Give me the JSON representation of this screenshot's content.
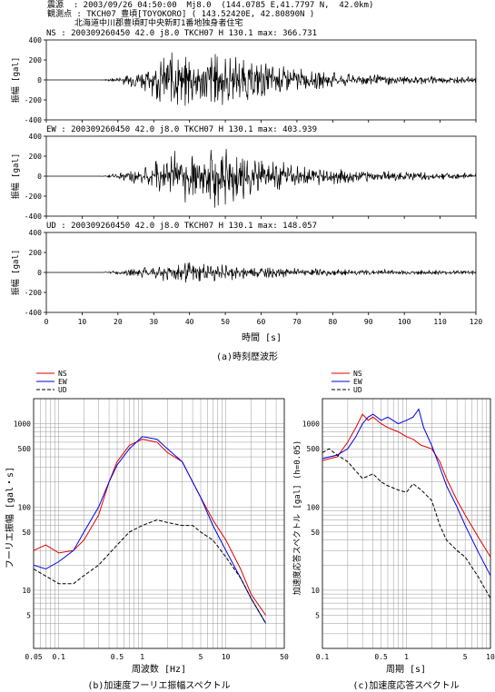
{
  "header": {
    "line1": "震源  : 2003/09/26 04:50:00  Mj8.0  (144.0785 E,41.7797 N,  42.0km)",
    "line2": "観測点 : TKCH07 豊頃[TOYOKORO] ( 143.52420E, 42.80890N )",
    "line3": "北海道中川郡豊頃町中央新町1番地独身者住宅"
  },
  "captions": {
    "a": "(a)時刻歴波形",
    "b": "(b)加速度フーリエ振幅スペクトル",
    "c": "(c)加速度応答スペクトル"
  },
  "chart_data": [
    {
      "type": "line",
      "id": "ns",
      "title": "NS : 200309260450  42.0 j8.0 TKCH07 H 130.1 max: 366.731",
      "ylabel": "振幅 [gal]",
      "yticks": [
        400,
        200,
        0,
        -200,
        -400
      ],
      "ylim": [
        -400,
        400
      ],
      "xlim": [
        0,
        120
      ],
      "peak": 366.731,
      "envelope": [
        {
          "x": 0,
          "y": 0
        },
        {
          "x": 15,
          "y": 0
        },
        {
          "x": 20,
          "y": 30
        },
        {
          "x": 28,
          "y": 120
        },
        {
          "x": 34,
          "y": 300
        },
        {
          "x": 38,
          "y": 330
        },
        {
          "x": 42,
          "y": 280
        },
        {
          "x": 47,
          "y": 300
        },
        {
          "x": 52,
          "y": 260
        },
        {
          "x": 60,
          "y": 190
        },
        {
          "x": 70,
          "y": 120
        },
        {
          "x": 85,
          "y": 70
        },
        {
          "x": 100,
          "y": 50
        },
        {
          "x": 120,
          "y": 30
        }
      ]
    },
    {
      "type": "line",
      "id": "ew",
      "title": "EW : 200309260450  42.0 j8.0 TKCH07 H 130.1 max: 403.939",
      "ylabel": "振幅 [gal]",
      "yticks": [
        400,
        200,
        0,
        -200,
        -400
      ],
      "ylim": [
        -400,
        400
      ],
      "xlim": [
        0,
        120
      ],
      "peak": 403.939,
      "envelope": [
        {
          "x": 0,
          "y": 0
        },
        {
          "x": 15,
          "y": 0
        },
        {
          "x": 20,
          "y": 30
        },
        {
          "x": 28,
          "y": 110
        },
        {
          "x": 34,
          "y": 280
        },
        {
          "x": 38,
          "y": 340
        },
        {
          "x": 42,
          "y": 250
        },
        {
          "x": 47,
          "y": 330
        },
        {
          "x": 52,
          "y": 270
        },
        {
          "x": 60,
          "y": 190
        },
        {
          "x": 70,
          "y": 120
        },
        {
          "x": 85,
          "y": 70
        },
        {
          "x": 100,
          "y": 50
        },
        {
          "x": 120,
          "y": 30
        }
      ]
    },
    {
      "type": "line",
      "id": "ud",
      "title": "UD : 200309260450  42.0 j8.0 TKCH07 H 130.1 max: 148.057",
      "ylabel": "振幅 [gal]",
      "xlabel": "時間 [s]",
      "yticks": [
        400,
        200,
        0,
        -200,
        -400
      ],
      "ylim": [
        -400,
        400
      ],
      "xlim": [
        0,
        120
      ],
      "xticks": [
        0,
        10,
        20,
        30,
        40,
        50,
        60,
        70,
        80,
        90,
        100,
        110,
        120
      ],
      "peak": 148.057,
      "envelope": [
        {
          "x": 0,
          "y": 0
        },
        {
          "x": 15,
          "y": 0
        },
        {
          "x": 20,
          "y": 20
        },
        {
          "x": 28,
          "y": 60
        },
        {
          "x": 34,
          "y": 100
        },
        {
          "x": 38,
          "y": 110
        },
        {
          "x": 45,
          "y": 100
        },
        {
          "x": 55,
          "y": 70
        },
        {
          "x": 70,
          "y": 45
        },
        {
          "x": 90,
          "y": 30
        },
        {
          "x": 120,
          "y": 20
        }
      ]
    },
    {
      "type": "line",
      "id": "fourier",
      "xlabel": "周波数 [Hz]",
      "ylabel": "フーリエ振幅 [gal・s]",
      "xlog": true,
      "ylog": true,
      "xlim": [
        0.05,
        50
      ],
      "ylim": [
        2,
        2000
      ],
      "xticks": [
        0.05,
        0.1,
        0.5,
        1,
        5,
        10,
        50
      ],
      "yticks": [
        5,
        10,
        50,
        100,
        500,
        1000
      ],
      "legend": [
        "NS",
        "EW",
        "UD"
      ],
      "series": [
        {
          "name": "NS",
          "color": "#e00000",
          "dash": "",
          "points": [
            [
              0.05,
              30
            ],
            [
              0.07,
              35
            ],
            [
              0.1,
              28
            ],
            [
              0.15,
              30
            ],
            [
              0.2,
              40
            ],
            [
              0.3,
              80
            ],
            [
              0.4,
              200
            ],
            [
              0.5,
              350
            ],
            [
              0.7,
              550
            ],
            [
              1.0,
              650
            ],
            [
              1.5,
              600
            ],
            [
              2.0,
              450
            ],
            [
              3.0,
              350
            ],
            [
              4.0,
              200
            ],
            [
              5.0,
              130
            ],
            [
              7.0,
              70
            ],
            [
              10,
              40
            ],
            [
              15,
              18
            ],
            [
              20,
              9
            ],
            [
              30,
              5
            ]
          ]
        },
        {
          "name": "EW",
          "color": "#0000e0",
          "dash": "",
          "points": [
            [
              0.05,
              20
            ],
            [
              0.07,
              18
            ],
            [
              0.1,
              22
            ],
            [
              0.15,
              30
            ],
            [
              0.2,
              50
            ],
            [
              0.3,
              100
            ],
            [
              0.4,
              200
            ],
            [
              0.5,
              320
            ],
            [
              0.7,
              500
            ],
            [
              1.0,
              700
            ],
            [
              1.5,
              650
            ],
            [
              2.0,
              500
            ],
            [
              3.0,
              350
            ],
            [
              4.0,
              200
            ],
            [
              5.0,
              130
            ],
            [
              7.0,
              60
            ],
            [
              10,
              30
            ],
            [
              15,
              14
            ],
            [
              20,
              8
            ],
            [
              30,
              4
            ]
          ]
        },
        {
          "name": "UD",
          "color": "#000000",
          "dash": "4,2",
          "points": [
            [
              0.05,
              18
            ],
            [
              0.1,
              12
            ],
            [
              0.15,
              12
            ],
            [
              0.2,
              15
            ],
            [
              0.3,
              20
            ],
            [
              0.5,
              35
            ],
            [
              0.7,
              50
            ],
            [
              1.0,
              60
            ],
            [
              1.5,
              70
            ],
            [
              2.0,
              65
            ],
            [
              3.0,
              60
            ],
            [
              4.0,
              60
            ],
            [
              5.0,
              50
            ],
            [
              7.0,
              40
            ],
            [
              10,
              25
            ],
            [
              15,
              14
            ],
            [
              20,
              8
            ],
            [
              30,
              4
            ]
          ]
        }
      ]
    },
    {
      "type": "line",
      "id": "response",
      "xlabel": "周期 [s]",
      "ylabel": "加速度応答スペクトル [gal]  (h=0.05)",
      "xlog": true,
      "ylog": true,
      "xlim": [
        0.1,
        10
      ],
      "ylim": [
        2,
        2000
      ],
      "xticks": [
        0.1,
        0.5,
        1,
        5,
        10
      ],
      "yticks": [
        5,
        10,
        50,
        100,
        500,
        1000
      ],
      "legend": [
        "NS",
        "EW",
        "UD"
      ],
      "series": [
        {
          "name": "NS",
          "color": "#e00000",
          "dash": "",
          "points": [
            [
              0.1,
              360
            ],
            [
              0.12,
              380
            ],
            [
              0.15,
              400
            ],
            [
              0.2,
              600
            ],
            [
              0.25,
              900
            ],
            [
              0.3,
              1300
            ],
            [
              0.35,
              1100
            ],
            [
              0.4,
              1200
            ],
            [
              0.5,
              1000
            ],
            [
              0.6,
              900
            ],
            [
              0.8,
              800
            ],
            [
              1.0,
              700
            ],
            [
              1.2,
              650
            ],
            [
              1.5,
              550
            ],
            [
              2.0,
              500
            ],
            [
              2.5,
              350
            ],
            [
              3.0,
              220
            ],
            [
              4.0,
              120
            ],
            [
              5.0,
              80
            ],
            [
              7.0,
              45
            ],
            [
              10,
              25
            ]
          ]
        },
        {
          "name": "EW",
          "color": "#0000e0",
          "dash": "",
          "points": [
            [
              0.1,
              380
            ],
            [
              0.12,
              400
            ],
            [
              0.15,
              420
            ],
            [
              0.2,
              500
            ],
            [
              0.25,
              700
            ],
            [
              0.3,
              1000
            ],
            [
              0.35,
              1200
            ],
            [
              0.4,
              1300
            ],
            [
              0.5,
              1100
            ],
            [
              0.6,
              1200
            ],
            [
              0.8,
              1000
            ],
            [
              1.0,
              1100
            ],
            [
              1.2,
              1200
            ],
            [
              1.4,
              1500
            ],
            [
              1.6,
              900
            ],
            [
              2.0,
              550
            ],
            [
              2.5,
              300
            ],
            [
              3.0,
              180
            ],
            [
              4.0,
              100
            ],
            [
              5.0,
              60
            ],
            [
              7.0,
              30
            ],
            [
              10,
              15
            ]
          ]
        },
        {
          "name": "UD",
          "color": "#000000",
          "dash": "4,2",
          "points": [
            [
              0.1,
              450
            ],
            [
              0.12,
              500
            ],
            [
              0.15,
              420
            ],
            [
              0.2,
              350
            ],
            [
              0.25,
              270
            ],
            [
              0.3,
              220
            ],
            [
              0.4,
              250
            ],
            [
              0.5,
              200
            ],
            [
              0.6,
              180
            ],
            [
              0.8,
              160
            ],
            [
              1.0,
              150
            ],
            [
              1.2,
              190
            ],
            [
              1.5,
              160
            ],
            [
              2.0,
              120
            ],
            [
              2.5,
              60
            ],
            [
              3.0,
              40
            ],
            [
              4.0,
              30
            ],
            [
              5.0,
              25
            ],
            [
              7.0,
              15
            ],
            [
              10,
              8
            ]
          ]
        }
      ]
    }
  ]
}
